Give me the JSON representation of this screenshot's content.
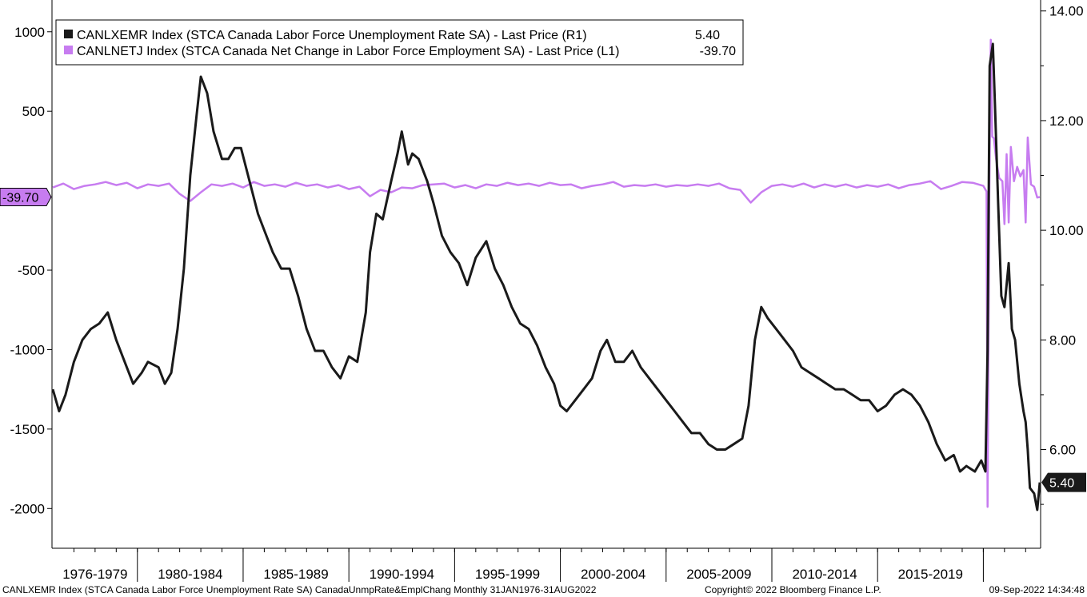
{
  "chart_data": {
    "type": "line",
    "legend": {
      "placement": "top-left",
      "entries": [
        {
          "label": "CANLXEMR Index (STCA Canada Labor Force Unemployment Rate SA) - Last Price (R1)",
          "value": "5.40",
          "color": "#1a1a1a"
        },
        {
          "label": "CANLNETJ Index (STCA Canada Net Change in Labor Force Employment SA) - Last Price (L1)",
          "value": "-39.70",
          "color": "#c77cf0"
        }
      ]
    },
    "left_axis": {
      "ticks": [
        {
          "value": 1000,
          "label": "1000"
        },
        {
          "value": 500,
          "label": "500"
        },
        {
          "value": -500,
          "label": "-500"
        },
        {
          "value": -1000,
          "label": "-1000"
        },
        {
          "value": -1500,
          "label": "-1500"
        },
        {
          "value": -2000,
          "label": "-2000"
        }
      ],
      "ylim": [
        -2250,
        1200
      ]
    },
    "right_axis": {
      "ticks": [
        {
          "value": 14,
          "label": "14.00"
        },
        {
          "value": 12,
          "label": "12.00"
        },
        {
          "value": 10,
          "label": "10.00"
        },
        {
          "value": 8,
          "label": "8.00"
        },
        {
          "value": 6,
          "label": "6.00"
        }
      ],
      "ylim": [
        4.2,
        14.2
      ]
    },
    "x_axis": {
      "categories": [
        "1976-1979",
        "1980-1984",
        "1985-1989",
        "1990-1994",
        "1995-1999",
        "2000-2004",
        "2005-2009",
        "2010-2014",
        "2015-2019"
      ],
      "range": [
        1976.0,
        2022.67
      ]
    },
    "badges": {
      "left": "-39.70",
      "right": "5.40"
    },
    "series": [
      {
        "name": "CANLXEMR Index (STCA Canada Labor Force Unemployment Rate SA) - Last Price (R1)",
        "axis": "right",
        "color": "#1a1a1a",
        "points": [
          [
            1976.0,
            7.1
          ],
          [
            1976.3,
            6.7
          ],
          [
            1976.6,
            7.0
          ],
          [
            1977.0,
            7.6
          ],
          [
            1977.4,
            8.0
          ],
          [
            1977.8,
            8.2
          ],
          [
            1978.2,
            8.3
          ],
          [
            1978.6,
            8.5
          ],
          [
            1979.0,
            8.0
          ],
          [
            1979.4,
            7.6
          ],
          [
            1979.8,
            7.2
          ],
          [
            1980.2,
            7.4
          ],
          [
            1980.5,
            7.6
          ],
          [
            1981.0,
            7.5
          ],
          [
            1981.3,
            7.2
          ],
          [
            1981.6,
            7.4
          ],
          [
            1981.9,
            8.2
          ],
          [
            1982.2,
            9.3
          ],
          [
            1982.5,
            11.0
          ],
          [
            1982.8,
            12.1
          ],
          [
            1983.0,
            12.8
          ],
          [
            1983.3,
            12.5
          ],
          [
            1983.6,
            11.8
          ],
          [
            1984.0,
            11.3
          ],
          [
            1984.3,
            11.3
          ],
          [
            1984.6,
            11.5
          ],
          [
            1984.9,
            11.5
          ],
          [
            1985.3,
            10.9
          ],
          [
            1985.7,
            10.3
          ],
          [
            1986.0,
            10.0
          ],
          [
            1986.4,
            9.6
          ],
          [
            1986.8,
            9.3
          ],
          [
            1987.2,
            9.3
          ],
          [
            1987.6,
            8.8
          ],
          [
            1988.0,
            8.2
          ],
          [
            1988.4,
            7.8
          ],
          [
            1988.8,
            7.8
          ],
          [
            1989.2,
            7.5
          ],
          [
            1989.6,
            7.3
          ],
          [
            1990.0,
            7.7
          ],
          [
            1990.4,
            7.6
          ],
          [
            1990.8,
            8.5
          ],
          [
            1991.0,
            9.6
          ],
          [
            1991.3,
            10.3
          ],
          [
            1991.6,
            10.2
          ],
          [
            1992.0,
            10.9
          ],
          [
            1992.3,
            11.4
          ],
          [
            1992.5,
            11.8
          ],
          [
            1992.8,
            11.2
          ],
          [
            1993.0,
            11.4
          ],
          [
            1993.3,
            11.3
          ],
          [
            1993.7,
            10.9
          ],
          [
            1994.0,
            10.5
          ],
          [
            1994.4,
            9.9
          ],
          [
            1994.8,
            9.6
          ],
          [
            1995.2,
            9.4
          ],
          [
            1995.6,
            9.0
          ],
          [
            1996.0,
            9.5
          ],
          [
            1996.5,
            9.8
          ],
          [
            1996.9,
            9.3
          ],
          [
            1997.3,
            9.0
          ],
          [
            1997.7,
            8.6
          ],
          [
            1998.1,
            8.3
          ],
          [
            1998.5,
            8.2
          ],
          [
            1998.9,
            7.9
          ],
          [
            1999.3,
            7.5
          ],
          [
            1999.7,
            7.2
          ],
          [
            2000.0,
            6.8
          ],
          [
            2000.3,
            6.7
          ],
          [
            2000.7,
            6.9
          ],
          [
            2001.1,
            7.1
          ],
          [
            2001.5,
            7.3
          ],
          [
            2001.9,
            7.8
          ],
          [
            2002.2,
            8.0
          ],
          [
            2002.6,
            7.6
          ],
          [
            2003.0,
            7.6
          ],
          [
            2003.4,
            7.8
          ],
          [
            2003.8,
            7.5
          ],
          [
            2004.2,
            7.3
          ],
          [
            2004.6,
            7.1
          ],
          [
            2005.0,
            6.9
          ],
          [
            2005.4,
            6.7
          ],
          [
            2005.8,
            6.5
          ],
          [
            2006.2,
            6.3
          ],
          [
            2006.6,
            6.3
          ],
          [
            2007.0,
            6.1
          ],
          [
            2007.4,
            6.0
          ],
          [
            2007.8,
            6.0
          ],
          [
            2008.2,
            6.1
          ],
          [
            2008.6,
            6.2
          ],
          [
            2008.9,
            6.8
          ],
          [
            2009.2,
            8.0
          ],
          [
            2009.5,
            8.6
          ],
          [
            2009.8,
            8.4
          ],
          [
            2010.2,
            8.2
          ],
          [
            2010.6,
            8.0
          ],
          [
            2011.0,
            7.8
          ],
          [
            2011.4,
            7.5
          ],
          [
            2011.8,
            7.4
          ],
          [
            2012.2,
            7.3
          ],
          [
            2012.6,
            7.2
          ],
          [
            2013.0,
            7.1
          ],
          [
            2013.4,
            7.1
          ],
          [
            2013.8,
            7.0
          ],
          [
            2014.2,
            6.9
          ],
          [
            2014.6,
            6.9
          ],
          [
            2015.0,
            6.7
          ],
          [
            2015.4,
            6.8
          ],
          [
            2015.8,
            7.0
          ],
          [
            2016.2,
            7.1
          ],
          [
            2016.6,
            7.0
          ],
          [
            2017.0,
            6.8
          ],
          [
            2017.4,
            6.5
          ],
          [
            2017.8,
            6.1
          ],
          [
            2018.2,
            5.8
          ],
          [
            2018.6,
            5.9
          ],
          [
            2018.9,
            5.6
          ],
          [
            2019.2,
            5.7
          ],
          [
            2019.6,
            5.6
          ],
          [
            2019.9,
            5.8
          ],
          [
            2020.1,
            5.6
          ],
          [
            2020.2,
            7.8
          ],
          [
            2020.3,
            13.0
          ],
          [
            2020.45,
            13.4
          ],
          [
            2020.55,
            12.3
          ],
          [
            2020.7,
            10.5
          ],
          [
            2020.85,
            8.8
          ],
          [
            2021.0,
            8.6
          ],
          [
            2021.2,
            9.4
          ],
          [
            2021.35,
            8.2
          ],
          [
            2021.5,
            8.0
          ],
          [
            2021.7,
            7.2
          ],
          [
            2021.9,
            6.7
          ],
          [
            2022.0,
            6.5
          ],
          [
            2022.1,
            6.0
          ],
          [
            2022.2,
            5.3
          ],
          [
            2022.4,
            5.2
          ],
          [
            2022.55,
            4.9
          ],
          [
            2022.67,
            5.4
          ]
        ]
      },
      {
        "name": "CANLNETJ Index (STCA Canada Net Change in Labor Force Employment SA) - Last Price (L1)",
        "axis": "left",
        "color": "#c77cf0",
        "points": [
          [
            1976.0,
            20
          ],
          [
            1976.5,
            45
          ],
          [
            1977.0,
            10
          ],
          [
            1977.5,
            30
          ],
          [
            1978.0,
            40
          ],
          [
            1978.5,
            55
          ],
          [
            1979.0,
            35
          ],
          [
            1979.5,
            50
          ],
          [
            1980.0,
            15
          ],
          [
            1980.5,
            40
          ],
          [
            1981.0,
            30
          ],
          [
            1981.5,
            45
          ],
          [
            1982.0,
            -20
          ],
          [
            1982.5,
            -65
          ],
          [
            1983.0,
            -10
          ],
          [
            1983.5,
            40
          ],
          [
            1984.0,
            30
          ],
          [
            1984.5,
            45
          ],
          [
            1985.0,
            20
          ],
          [
            1985.5,
            55
          ],
          [
            1986.0,
            30
          ],
          [
            1986.5,
            40
          ],
          [
            1987.0,
            25
          ],
          [
            1987.5,
            50
          ],
          [
            1988.0,
            30
          ],
          [
            1988.5,
            40
          ],
          [
            1989.0,
            20
          ],
          [
            1989.5,
            35
          ],
          [
            1990.0,
            10
          ],
          [
            1990.5,
            25
          ],
          [
            1991.0,
            -35
          ],
          [
            1991.5,
            5
          ],
          [
            1992.0,
            -10
          ],
          [
            1992.5,
            20
          ],
          [
            1993.0,
            15
          ],
          [
            1993.5,
            35
          ],
          [
            1994.0,
            40
          ],
          [
            1994.5,
            45
          ],
          [
            1995.0,
            20
          ],
          [
            1995.5,
            35
          ],
          [
            1996.0,
            15
          ],
          [
            1996.5,
            40
          ],
          [
            1997.0,
            30
          ],
          [
            1997.5,
            50
          ],
          [
            1998.0,
            35
          ],
          [
            1998.5,
            45
          ],
          [
            1999.0,
            30
          ],
          [
            1999.5,
            50
          ],
          [
            2000.0,
            35
          ],
          [
            2000.5,
            40
          ],
          [
            2001.0,
            15
          ],
          [
            2001.5,
            30
          ],
          [
            2002.0,
            40
          ],
          [
            2002.5,
            55
          ],
          [
            2003.0,
            25
          ],
          [
            2003.5,
            35
          ],
          [
            2004.0,
            30
          ],
          [
            2004.5,
            40
          ],
          [
            2005.0,
            25
          ],
          [
            2005.5,
            35
          ],
          [
            2006.0,
            30
          ],
          [
            2006.5,
            40
          ],
          [
            2007.0,
            30
          ],
          [
            2007.5,
            45
          ],
          [
            2008.0,
            15
          ],
          [
            2008.5,
            5
          ],
          [
            2009.0,
            -75
          ],
          [
            2009.5,
            -10
          ],
          [
            2010.0,
            30
          ],
          [
            2010.5,
            40
          ],
          [
            2011.0,
            25
          ],
          [
            2011.5,
            45
          ],
          [
            2012.0,
            20
          ],
          [
            2012.5,
            40
          ],
          [
            2013.0,
            25
          ],
          [
            2013.5,
            40
          ],
          [
            2014.0,
            20
          ],
          [
            2014.5,
            35
          ],
          [
            2015.0,
            25
          ],
          [
            2015.5,
            40
          ],
          [
            2016.0,
            15
          ],
          [
            2016.5,
            35
          ],
          [
            2017.0,
            45
          ],
          [
            2017.5,
            60
          ],
          [
            2018.0,
            10
          ],
          [
            2018.5,
            30
          ],
          [
            2019.0,
            55
          ],
          [
            2019.5,
            50
          ],
          [
            2020.0,
            30
          ],
          [
            2020.15,
            -5
          ],
          [
            2020.2,
            -1990
          ],
          [
            2020.28,
            -30
          ],
          [
            2020.35,
            950
          ],
          [
            2020.42,
            340
          ],
          [
            2020.5,
            330
          ],
          [
            2020.6,
            200
          ],
          [
            2020.75,
            80
          ],
          [
            2020.9,
            60
          ],
          [
            2021.0,
            -210
          ],
          [
            2021.1,
            230
          ],
          [
            2021.2,
            -200
          ],
          [
            2021.3,
            275
          ],
          [
            2021.45,
            60
          ],
          [
            2021.6,
            150
          ],
          [
            2021.75,
            90
          ],
          [
            2021.9,
            130
          ],
          [
            2022.0,
            -200
          ],
          [
            2022.1,
            335
          ],
          [
            2022.25,
            40
          ],
          [
            2022.4,
            25
          ],
          [
            2022.55,
            -43
          ],
          [
            2022.67,
            -39.7
          ]
        ]
      }
    ]
  },
  "footer": {
    "left": "CANLXEMR Index (STCA Canada Labor Force Unemployment Rate SA) CanadaUnmpRate&EmplChang  Monthly 31JAN1976-31AUG2022",
    "center": "Copyright© 2022 Bloomberg Finance L.P.",
    "right": "09-Sep-2022 14:34:48"
  }
}
